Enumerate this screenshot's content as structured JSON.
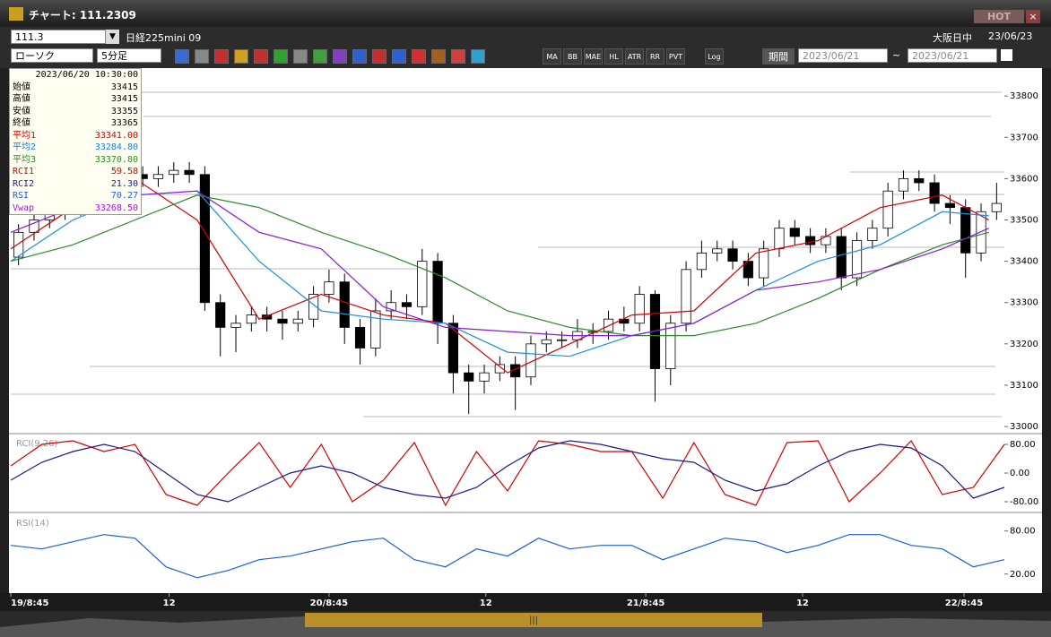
{
  "window": {
    "title": "チャート: 111.2309",
    "hot": "HOT"
  },
  "toolbar": {
    "code": "111.3",
    "name": "日経225mini 09",
    "exchange": "大阪日中",
    "date": "23/06/23",
    "chart_kind": "ローソク",
    "interval": "5分足",
    "buttons": [
      "MA",
      "BB",
      "MAE",
      "HL",
      "ATR",
      "RR",
      "PVT",
      "Log"
    ],
    "period": "期間",
    "from": "2023/06/21",
    "tilde": "~",
    "to": "2023/06/21"
  },
  "info": {
    "datetime": "2023/06/20  10:30:00",
    "rows": [
      {
        "label": "始値",
        "value": "33415",
        "color": "#000000"
      },
      {
        "label": "高値",
        "value": "33415",
        "color": "#000000"
      },
      {
        "label": "安値",
        "value": "33355",
        "color": "#000000"
      },
      {
        "label": "終値",
        "value": "33365",
        "color": "#000000"
      },
      {
        "label": "平均1",
        "value": "33341.00",
        "color": "#d40000"
      },
      {
        "label": "平均2",
        "value": "33284.80",
        "color": "#1a7fd6"
      },
      {
        "label": "平均3",
        "value": "33370.80",
        "color": "#2a8a2a"
      },
      {
        "label": "RCI1",
        "value": "59.58",
        "color": "#d40000"
      },
      {
        "label": "RCI2",
        "value": "21.30",
        "color": "#1a1a9a"
      },
      {
        "label": "RSI",
        "value": "70.27",
        "color": "#1a5fd6"
      },
      {
        "label": "Vwap",
        "value": "33268.50",
        "color": "#9a1ad6"
      }
    ]
  },
  "chart_data": [
    {
      "type": "candlestick",
      "xlim": [
        0,
        64
      ],
      "ylim": [
        32985,
        33848
      ],
      "yticks": [
        33000,
        33100,
        33200,
        33300,
        33400,
        33500,
        33600,
        33700,
        33800
      ],
      "up_color": "#ffffff",
      "down_color": "#000000",
      "open": [
        33410,
        33470,
        33500,
        33520,
        33530,
        33550,
        33560,
        33620,
        33610,
        33600,
        33610,
        33620,
        33610,
        33300,
        33240,
        33250,
        33270,
        33260,
        33250,
        33260,
        33320,
        33350,
        33240,
        33190,
        33280,
        33300,
        33290,
        33400,
        33250,
        33130,
        33110,
        33130,
        33150,
        33120,
        33200,
        33210,
        33210,
        33230,
        33230,
        33260,
        33250,
        33320,
        33140,
        33250,
        33380,
        33420,
        33430,
        33400,
        33360,
        33430,
        33480,
        33460,
        33440,
        33460,
        33360,
        33450,
        33480,
        33570,
        33600,
        33590,
        33540,
        33530,
        33420,
        33520
      ],
      "high": [
        33490,
        33520,
        33540,
        33550,
        33570,
        33580,
        33640,
        33640,
        33630,
        33630,
        33640,
        33640,
        33630,
        33320,
        33270,
        33290,
        33290,
        33280,
        33280,
        33340,
        33380,
        33370,
        33260,
        33310,
        33330,
        33320,
        33430,
        33420,
        33270,
        33150,
        33150,
        33170,
        33170,
        33220,
        33230,
        33230,
        33260,
        33250,
        33280,
        33290,
        33340,
        33330,
        33270,
        33400,
        33450,
        33450,
        33450,
        33420,
        33450,
        33500,
        33500,
        33480,
        33480,
        33480,
        33470,
        33500,
        33590,
        33620,
        33620,
        33610,
        33560,
        33550,
        33540,
        33590
      ],
      "low": [
        33390,
        33450,
        33480,
        33500,
        33510,
        33530,
        33540,
        33590,
        33580,
        33580,
        33590,
        33590,
        33280,
        33170,
        33180,
        33230,
        33230,
        33210,
        33230,
        33240,
        33300,
        33200,
        33150,
        33170,
        33260,
        33260,
        33270,
        33200,
        33080,
        33030,
        33080,
        33110,
        33040,
        33100,
        33180,
        33190,
        33190,
        33200,
        33210,
        33230,
        33230,
        33060,
        33100,
        33230,
        33360,
        33400,
        33380,
        33340,
        33340,
        33410,
        33440,
        33420,
        33420,
        33330,
        33340,
        33430,
        33460,
        33550,
        33570,
        33520,
        33490,
        33360,
        33400,
        33500
      ],
      "close": [
        33470,
        33500,
        33520,
        33530,
        33550,
        33560,
        33620,
        33610,
        33600,
        33610,
        33620,
        33610,
        33300,
        33240,
        33250,
        33270,
        33260,
        33250,
        33260,
        33320,
        33350,
        33240,
        33190,
        33280,
        33300,
        33290,
        33400,
        33250,
        33130,
        33110,
        33130,
        33150,
        33120,
        33200,
        33210,
        33210,
        33230,
        33230,
        33260,
        33250,
        33320,
        33140,
        33250,
        33380,
        33420,
        33430,
        33400,
        33360,
        33430,
        33480,
        33460,
        33440,
        33460,
        33360,
        33450,
        33480,
        33570,
        33600,
        33590,
        33540,
        33530,
        33420,
        33520,
        33540
      ],
      "series": [
        {
          "color": "#d40000",
          "x": [
            0,
            4,
            8,
            12,
            16,
            20,
            24,
            28,
            32,
            36,
            40,
            44,
            48,
            52,
            56,
            60,
            63
          ],
          "values": [
            33430,
            33530,
            33600,
            33500,
            33260,
            33320,
            33270,
            33250,
            33130,
            33200,
            33270,
            33280,
            33420,
            33450,
            33530,
            33560,
            33500
          ]
        },
        {
          "color": "#1a8fe0",
          "x": [
            0,
            4,
            8,
            12,
            16,
            20,
            24,
            28,
            32,
            36,
            40,
            44,
            48,
            52,
            56,
            60,
            63
          ],
          "values": [
            33400,
            33500,
            33560,
            33570,
            33400,
            33280,
            33260,
            33250,
            33180,
            33170,
            33220,
            33250,
            33330,
            33400,
            33440,
            33520,
            33510
          ]
        },
        {
          "color": "#2a8a2a",
          "x": [
            0,
            4,
            8,
            12,
            16,
            20,
            24,
            28,
            32,
            36,
            40,
            44,
            48,
            52,
            56,
            60,
            63
          ],
          "values": [
            33400,
            33440,
            33500,
            33560,
            33530,
            33470,
            33420,
            33360,
            33280,
            33240,
            33220,
            33220,
            33250,
            33310,
            33380,
            33440,
            33470
          ]
        },
        {
          "color": "#8a1ad0",
          "x": [
            0,
            4,
            8,
            12,
            16,
            20,
            24,
            28,
            32,
            36,
            40,
            44,
            48,
            52,
            56,
            60,
            63
          ],
          "values": [
            33470,
            33530,
            33560,
            33570,
            33470,
            33430,
            33290,
            33240,
            33230,
            33220,
            33220,
            33250,
            33330,
            33350,
            33380,
            33430,
            33480
          ]
        }
      ]
    },
    {
      "type": "line",
      "title": "RCI(9,26)",
      "xlim": [
        0,
        64
      ],
      "ylim": [
        -105,
        105
      ],
      "yticks": [
        {
          "value": 80,
          "label": "80.00"
        },
        {
          "value": 0,
          "label": "0.00"
        },
        {
          "value": -80,
          "label": "-80.00"
        }
      ],
      "series": [
        {
          "color": "#d40000",
          "x": [
            0,
            2,
            4,
            6,
            8,
            10,
            12,
            14,
            16,
            18,
            20,
            22,
            24,
            26,
            28,
            30,
            32,
            34,
            36,
            38,
            40,
            42,
            44,
            46,
            48,
            50,
            52,
            54,
            56,
            58,
            60,
            62,
            64
          ],
          "values": [
            20,
            80,
            90,
            60,
            80,
            -60,
            -90,
            0,
            85,
            -40,
            80,
            -80,
            -20,
            85,
            -90,
            60,
            -50,
            90,
            80,
            60,
            60,
            -70,
            85,
            -60,
            -90,
            85,
            90,
            -80,
            0,
            90,
            -60,
            -40,
            80
          ]
        },
        {
          "color": "#1a1a8a",
          "x": [
            0,
            2,
            4,
            6,
            8,
            10,
            12,
            14,
            16,
            18,
            20,
            22,
            24,
            26,
            28,
            30,
            32,
            34,
            36,
            38,
            40,
            42,
            44,
            46,
            48,
            50,
            52,
            54,
            56,
            58,
            60,
            62,
            64
          ],
          "values": [
            -20,
            30,
            60,
            80,
            60,
            0,
            -60,
            -80,
            -40,
            0,
            20,
            0,
            -40,
            -60,
            -70,
            -40,
            20,
            70,
            90,
            80,
            60,
            40,
            30,
            -20,
            -50,
            -30,
            20,
            60,
            80,
            70,
            20,
            -70,
            -40
          ]
        }
      ]
    },
    {
      "type": "line",
      "title": "RSI(14)",
      "xlim": [
        0,
        64
      ],
      "ylim": [
        -4,
        102
      ],
      "yticks": [
        {
          "value": 80,
          "label": "80.00"
        },
        {
          "value": 20,
          "label": "20.00"
        }
      ],
      "xticks": [
        {
          "value": 0,
          "label": "19/8:45"
        },
        {
          "value": 10.2,
          "label": "12"
        },
        {
          "value": 20.5,
          "label": "20/8:45"
        },
        {
          "value": 30.6,
          "label": "12"
        },
        {
          "value": 40.9,
          "label": "21/8:45"
        },
        {
          "value": 51,
          "label": "12"
        },
        {
          "value": 61.4,
          "label": "22/8:45"
        }
      ],
      "series": [
        {
          "color": "#1a5fd6",
          "x": [
            0,
            2,
            4,
            6,
            8,
            10,
            12,
            14,
            16,
            18,
            20,
            22,
            24,
            26,
            28,
            30,
            32,
            34,
            36,
            38,
            40,
            42,
            44,
            46,
            48,
            50,
            52,
            54,
            56,
            58,
            60,
            62,
            64
          ],
          "values": [
            60,
            55,
            65,
            75,
            70,
            30,
            15,
            25,
            40,
            45,
            55,
            65,
            70,
            40,
            30,
            55,
            45,
            70,
            55,
            60,
            60,
            40,
            55,
            70,
            65,
            50,
            60,
            75,
            75,
            60,
            55,
            30,
            40
          ]
        }
      ]
    }
  ]
}
